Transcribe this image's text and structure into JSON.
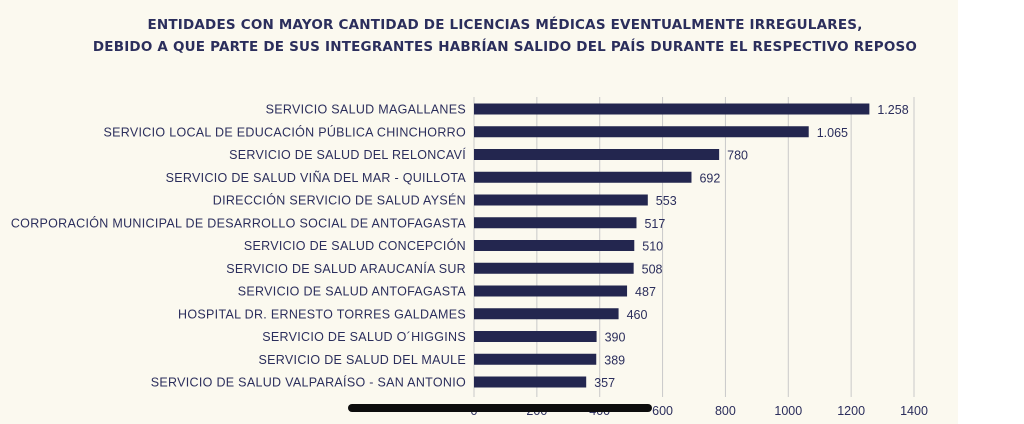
{
  "chart_data": {
    "type": "bar",
    "orientation": "horizontal",
    "title_line1": "ENTIDADES CON MAYOR CANTIDAD DE LICENCIAS MÉDICAS EVENTUALMENTE IRREGULARES,",
    "title_line2": "DEBIDO A QUE PARTE DE SUS INTEGRANTES HABRÍAN SALIDO DEL PAÍS DURANTE EL RESPECTIVO REPOSO",
    "categories": [
      "SERVICIO SALUD MAGALLANES",
      "SERVICIO LOCAL DE EDUCACIÓN PÚBLICA CHINCHORRO",
      "SERVICIO DE SALUD DEL RELONCAVÍ",
      "SERVICIO DE SALUD VIÑA DEL MAR - QUILLOTA",
      "DIRECCIÓN SERVICIO DE SALUD AYSÉN",
      "CORPORACIÓN MUNICIPAL DE DESARROLLO SOCIAL DE ANTOFAGASTA",
      "SERVICIO DE SALUD CONCEPCIÓN",
      "SERVICIO DE SALUD ARAUCANÍA SUR",
      "SERVICIO DE SALUD ANTOFAGASTA",
      "HOSPITAL DR. ERNESTO TORRES GALDAMES",
      "SERVICIO DE SALUD O´HIGGINS",
      "SERVICIO DE SALUD DEL  MAULE",
      "SERVICIO DE SALUD VALPARAÍSO - SAN ANTONIO"
    ],
    "values": [
      1258,
      1065,
      780,
      692,
      553,
      517,
      510,
      508,
      487,
      460,
      390,
      389,
      357
    ],
    "value_labels": [
      "1.258",
      "1.065",
      "780",
      "692",
      "553",
      "517",
      "510",
      "508",
      "487",
      "460",
      "390",
      "389",
      "357"
    ],
    "xticks": [
      "0",
      "200",
      "400",
      "600",
      "800",
      "1000",
      "1200",
      "1400"
    ],
    "xlim": [
      0,
      1400
    ],
    "grid": "vertical",
    "bar_color": "#23264f",
    "legend": "none"
  }
}
